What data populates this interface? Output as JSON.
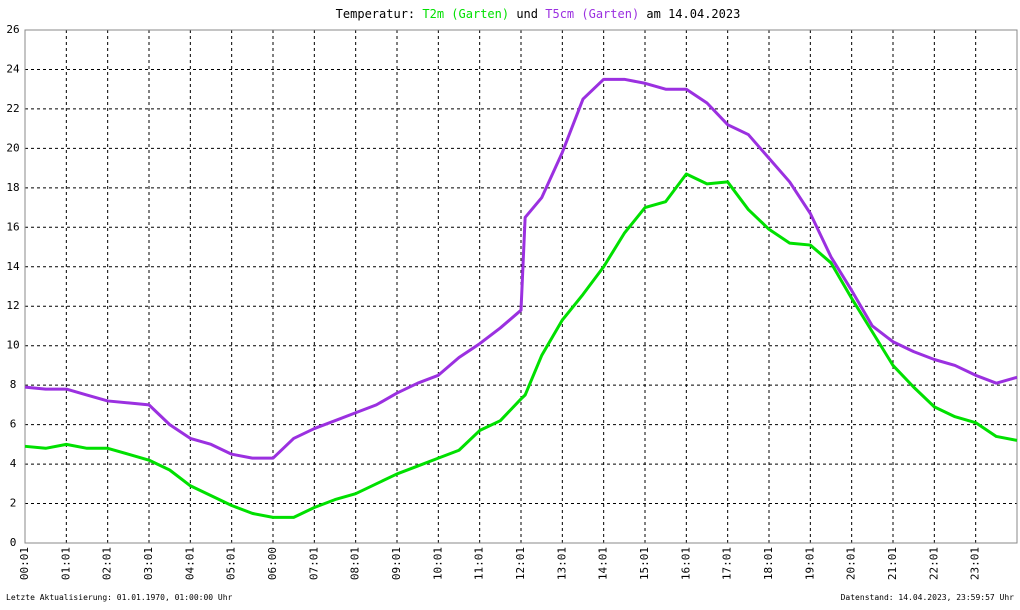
{
  "chart_data": {
    "type": "line",
    "title_prefix": "Temperatur:",
    "title_joiner": "und",
    "title_suffix": "am 14.04.2023",
    "x": [
      0,
      0.5,
      1,
      1.5,
      2,
      2.5,
      3,
      3.5,
      4,
      4.5,
      5,
      5.5,
      6,
      6.5,
      7,
      7.5,
      8,
      8.5,
      9,
      9.5,
      10,
      10.5,
      11,
      11.5,
      12,
      12.1,
      12.5,
      13,
      13.5,
      14,
      14.5,
      15,
      15.5,
      16,
      16.5,
      17,
      17.5,
      18,
      18.5,
      19,
      19.5,
      20,
      20.5,
      21,
      21.5,
      22,
      22.5,
      23,
      23.5,
      24
    ],
    "series": [
      {
        "name": "T2m (Garten)",
        "color": "#00e000",
        "values": [
          4.9,
          4.8,
          5.0,
          4.8,
          4.8,
          4.5,
          4.2,
          3.7,
          2.9,
          2.4,
          1.9,
          1.5,
          1.3,
          1.3,
          1.8,
          2.2,
          2.5,
          3.0,
          3.5,
          3.9,
          4.3,
          4.7,
          5.7,
          6.2,
          7.3,
          7.5,
          9.5,
          11.3,
          12.6,
          14.0,
          15.7,
          17.0,
          17.3,
          18.7,
          18.2,
          18.3,
          16.9,
          15.9,
          15.2,
          15.1,
          14.2,
          12.4,
          10.7,
          9.0,
          7.9,
          6.9,
          6.4,
          6.1,
          5.4,
          5.2
        ]
      },
      {
        "name": "T5cm (Garten)",
        "color": "#9b30e0",
        "values": [
          7.9,
          7.8,
          7.8,
          7.5,
          7.2,
          7.1,
          7.0,
          6.0,
          5.3,
          5.0,
          4.5,
          4.3,
          4.3,
          5.3,
          5.8,
          6.2,
          6.6,
          7.0,
          7.6,
          8.1,
          8.5,
          9.4,
          10.1,
          10.9,
          11.8,
          16.5,
          17.5,
          19.8,
          22.5,
          23.5,
          23.5,
          23.3,
          23.0,
          23.0,
          22.3,
          21.2,
          20.7,
          19.5,
          18.3,
          16.7,
          14.5,
          12.8,
          11.0,
          10.2,
          9.7,
          9.3,
          9.0,
          8.5,
          8.1,
          8.4
        ]
      }
    ],
    "xlim": [
      0,
      24
    ],
    "xticks": [
      {
        "value": 0,
        "label": "00:01"
      },
      {
        "value": 1,
        "label": "01:01"
      },
      {
        "value": 2,
        "label": "02:01"
      },
      {
        "value": 3,
        "label": "03:01"
      },
      {
        "value": 4,
        "label": "04:01"
      },
      {
        "value": 5,
        "label": "05:01"
      },
      {
        "value": 6,
        "label": "06:00"
      },
      {
        "value": 7,
        "label": "07:01"
      },
      {
        "value": 8,
        "label": "08:01"
      },
      {
        "value": 9,
        "label": "09:01"
      },
      {
        "value": 10,
        "label": "10:01"
      },
      {
        "value": 11,
        "label": "11:01"
      },
      {
        "value": 12,
        "label": "12:01"
      },
      {
        "value": 13,
        "label": "13:01"
      },
      {
        "value": 14,
        "label": "14:01"
      },
      {
        "value": 15,
        "label": "15:01"
      },
      {
        "value": 16,
        "label": "16:01"
      },
      {
        "value": 17,
        "label": "17:01"
      },
      {
        "value": 18,
        "label": "18:01"
      },
      {
        "value": 19,
        "label": "19:01"
      },
      {
        "value": 20,
        "label": "20:01"
      },
      {
        "value": 21,
        "label": "21:01"
      },
      {
        "value": 22,
        "label": "22:01"
      },
      {
        "value": 23,
        "label": "23:01"
      }
    ],
    "ylim": [
      0,
      26
    ],
    "yticks": [
      0,
      2,
      4,
      6,
      8,
      10,
      12,
      14,
      16,
      18,
      20,
      22,
      24,
      26
    ],
    "grid": true,
    "footer_left": "Letzte Aktualisierung: 01.01.1970, 01:00:00 Uhr",
    "footer_right": "Datenstand: 14.04.2023, 23:59:57 Uhr"
  }
}
